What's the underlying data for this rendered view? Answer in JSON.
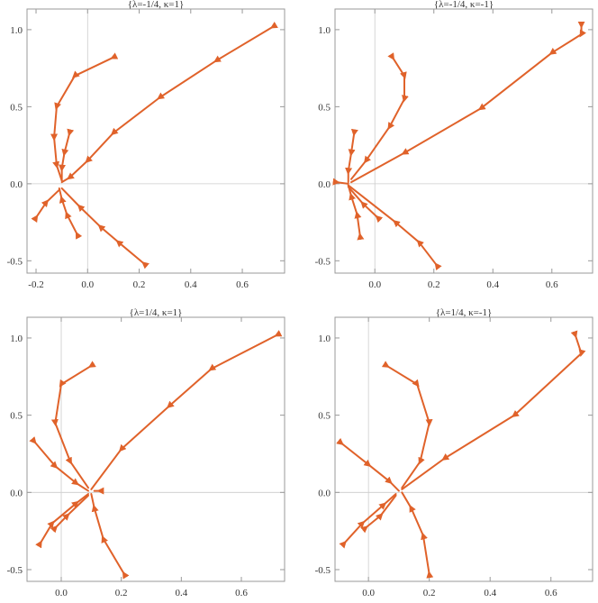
{
  "chart_data": [
    {
      "type": "line",
      "title": "{λ=-1/4, κ=1}",
      "color": "#e0622a",
      "xlim": [
        -0.235,
        0.764
      ],
      "ylim": [
        -0.58,
        1.134
      ],
      "xticks": [
        -0.2,
        {
          "value": 0,
          "label": "0.0"
        },
        0.2,
        0.4,
        0.6
      ],
      "yticks": [
        -0.5,
        {
          "value": 0,
          "label": "0.0"
        },
        0.5,
        {
          "value": 1,
          "label": "1.0"
        }
      ],
      "series": [
        {
          "x": [
            0.72,
            0.5,
            0.28,
            0.1,
            0,
            -0.07,
            -0.1
          ],
          "values": [
            1.02,
            0.8,
            0.56,
            0.33,
            0.15,
            0.04,
            0.01
          ]
        },
        {
          "x": [
            0.1,
            -0.05,
            -0.12,
            -0.13,
            -0.12,
            -0.1
          ],
          "values": [
            0.82,
            0.7,
            0.5,
            0.3,
            0.12,
            0.02
          ]
        },
        {
          "x": [
            -0.07,
            -0.09,
            -0.1,
            -0.1
          ],
          "values": [
            0.33,
            0.2,
            0.1,
            0.02
          ]
        },
        {
          "x": [
            -0.2,
            -0.16,
            -0.11
          ],
          "values": [
            -0.22,
            -0.12,
            -0.04
          ]
        },
        {
          "x": [
            -0.04,
            -0.08,
            -0.1,
            -0.11
          ],
          "values": [
            -0.33,
            -0.2,
            -0.1,
            -0.03
          ]
        },
        {
          "x": [
            0.22,
            0.12,
            0.05,
            -0.03,
            -0.1
          ],
          "values": [
            -0.52,
            -0.38,
            -0.28,
            -0.15,
            -0.03
          ]
        }
      ]
    },
    {
      "type": "line",
      "title": "{λ=-1/4, κ=-1}",
      "color": "#e0622a",
      "xlim": [
        -0.135,
        0.738
      ],
      "ylim": [
        -0.58,
        1.134
      ],
      "xticks": [
        {
          "value": 0,
          "label": "0.0"
        },
        0.2,
        0.4,
        0.6
      ],
      "yticks": [
        -0.5,
        {
          "value": 0,
          "label": "0.0"
        },
        0.5,
        {
          "value": 1,
          "label": "1.0"
        }
      ],
      "series": [
        {
          "x": [
            0.7,
            0.7,
            0.6,
            0.36,
            0.1,
            -0.08
          ],
          "values": [
            1.03,
            0.97,
            0.85,
            0.49,
            0.2,
            0.01
          ]
        },
        {
          "x": [
            0.06,
            0.1,
            0.1,
            0.05,
            -0.03,
            -0.08
          ],
          "values": [
            0.82,
            0.7,
            0.55,
            0.37,
            0.15,
            0.03
          ]
        },
        {
          "x": [
            -0.07,
            -0.08,
            -0.09,
            -0.09
          ],
          "values": [
            0.33,
            0.2,
            0.08,
            0.01
          ]
        },
        {
          "x": [
            -0.13,
            -0.09
          ],
          "values": [
            0.01,
            0
          ]
        },
        {
          "x": [
            0.01,
            -0.04,
            -0.09
          ],
          "values": [
            -0.22,
            -0.13,
            -0.02
          ]
        },
        {
          "x": [
            -0.05,
            -0.06,
            -0.08,
            -0.09
          ],
          "values": [
            -0.34,
            -0.2,
            -0.08,
            -0.01
          ]
        },
        {
          "x": [
            0.21,
            0.15,
            0.07,
            -0.09
          ],
          "values": [
            -0.53,
            -0.38,
            -0.25,
            -0.01
          ]
        }
      ]
    },
    {
      "type": "line",
      "title": "{λ=1/4, κ=1}",
      "color": "#e0622a",
      "xlim": [
        -0.114,
        0.744
      ],
      "ylim": [
        -0.576,
        1.134
      ],
      "xticks": [
        {
          "value": 0,
          "label": "0.0"
        },
        0.2,
        0.4,
        0.6
      ],
      "yticks": [
        -0.5,
        {
          "value": 0,
          "label": "0.0"
        },
        0.5,
        {
          "value": 1,
          "label": "1.0"
        }
      ],
      "series": [
        {
          "x": [
            0.72,
            0.5,
            0.36,
            0.2,
            0.1
          ],
          "values": [
            1.02,
            0.8,
            0.56,
            0.28,
            0.02
          ]
        },
        {
          "x": [
            0.1,
            0,
            -0.02,
            0.03,
            0.09
          ],
          "values": [
            0.82,
            0.7,
            0.45,
            0.2,
            0.03
          ]
        },
        {
          "x": [
            -0.09,
            -0.02,
            0.05,
            0.09
          ],
          "values": [
            0.33,
            0.17,
            0.06,
            0.01
          ]
        },
        {
          "x": [
            -0.07,
            -0.03,
            0.05,
            0.09
          ],
          "values": [
            -0.33,
            -0.2,
            -0.07,
            -0.01
          ]
        },
        {
          "x": [
            -0.02,
            0.02,
            0.09
          ],
          "values": [
            -0.23,
            -0.15,
            -0.02
          ]
        },
        {
          "x": [
            0.21,
            0.14,
            0.11,
            0.1
          ],
          "values": [
            -0.53,
            -0.3,
            -0.1,
            -0.01
          ]
        },
        {
          "x": [
            0.13,
            0.11
          ],
          "values": [
            0.01,
            0.01
          ]
        }
      ]
    },
    {
      "type": "line",
      "title": "{λ=1/4, κ=-1}",
      "color": "#e0622a",
      "xlim": [
        -0.11,
        0.737
      ],
      "ylim": [
        -0.576,
        1.134
      ],
      "xticks": [
        {
          "value": 0,
          "label": "0.0"
        },
        0.2,
        0.4,
        0.6
      ],
      "yticks": [
        -0.5,
        {
          "value": 0,
          "label": "0.0"
        },
        0.5,
        {
          "value": 1,
          "label": "1.0"
        }
      ],
      "series": [
        {
          "x": [
            0.68,
            0.7,
            0.48,
            0.25,
            0.11
          ],
          "values": [
            1.02,
            0.9,
            0.5,
            0.22,
            0.02
          ]
        },
        {
          "x": [
            0.06,
            0.16,
            0.2,
            0.17,
            0.11
          ],
          "values": [
            0.82,
            0.7,
            0.45,
            0.2,
            0.03
          ]
        },
        {
          "x": [
            -0.09,
            0,
            0.07,
            0.1
          ],
          "values": [
            0.32,
            0.18,
            0.07,
            0.01
          ]
        },
        {
          "x": [
            -0.08,
            -0.02,
            0.05,
            0.09
          ],
          "values": [
            -0.33,
            -0.2,
            -0.08,
            -0.01
          ]
        },
        {
          "x": [
            -0.01,
            0.04,
            0.09
          ],
          "values": [
            -0.23,
            -0.15,
            -0.02
          ]
        },
        {
          "x": [
            0.2,
            0.18,
            0.14,
            0.11
          ],
          "values": [
            -0.53,
            -0.28,
            -0.1,
            0
          ]
        }
      ]
    }
  ]
}
